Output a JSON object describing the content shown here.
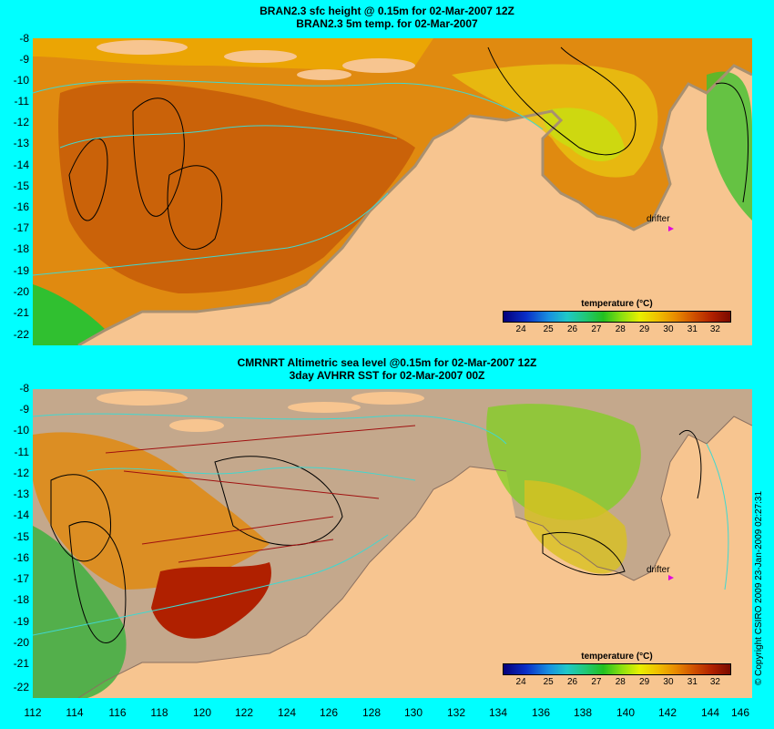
{
  "top": {
    "title_line1": "BRAN2.3 sfc height @ 0.15m for 02-Mar-2007 12Z",
    "title_line2": "BRAN2.3 5m temp. for 02-Mar-2007",
    "legend_title": "temperature (°C)",
    "drifter_label": "drifter"
  },
  "bottom": {
    "title_line1": "CMRNRT Altimetric sea level  @0.15m  for 02-Mar-2007 12Z",
    "title_line2": "3day AVHRR SST for 02-Mar-2007 00Z",
    "legend_title": "temperature (°C)",
    "drifter_label": "drifter"
  },
  "colorbar_ticks": [
    "24",
    "25",
    "26",
    "27",
    "28",
    "29",
    "30",
    "31",
    "32"
  ],
  "y_ticks_top": [
    "-8",
    "-9",
    "-10",
    "-11",
    "-12",
    "-13",
    "-14",
    "-15",
    "-16",
    "-17",
    "-18",
    "-19",
    "-20",
    "-21",
    "-22"
  ],
  "y_ticks_bottom": [
    "-8",
    "-9",
    "-10",
    "-11",
    "-12",
    "-13",
    "-14",
    "-15",
    "-16",
    "-17",
    "-18",
    "-19",
    "-20",
    "-21",
    "-22"
  ],
  "x_ticks": [
    "112",
    "114",
    "116",
    "118",
    "120",
    "122",
    "124",
    "126",
    "128",
    "130",
    "132",
    "134",
    "136",
    "138",
    "140",
    "142",
    "144",
    "146"
  ],
  "copyright": "© Copyright CSIRO 2009   23-Jan-2009 02:27:31",
  "colors": {
    "land": "#f7c590",
    "ocean_warm": "#d8820a",
    "ocean_hot": "#b83a00",
    "ocean_yellow": "#f0c000",
    "no_data": "#c4a88c",
    "contour": "#40d8d0",
    "background": "#00ffff",
    "drifter": "#e000e0"
  }
}
